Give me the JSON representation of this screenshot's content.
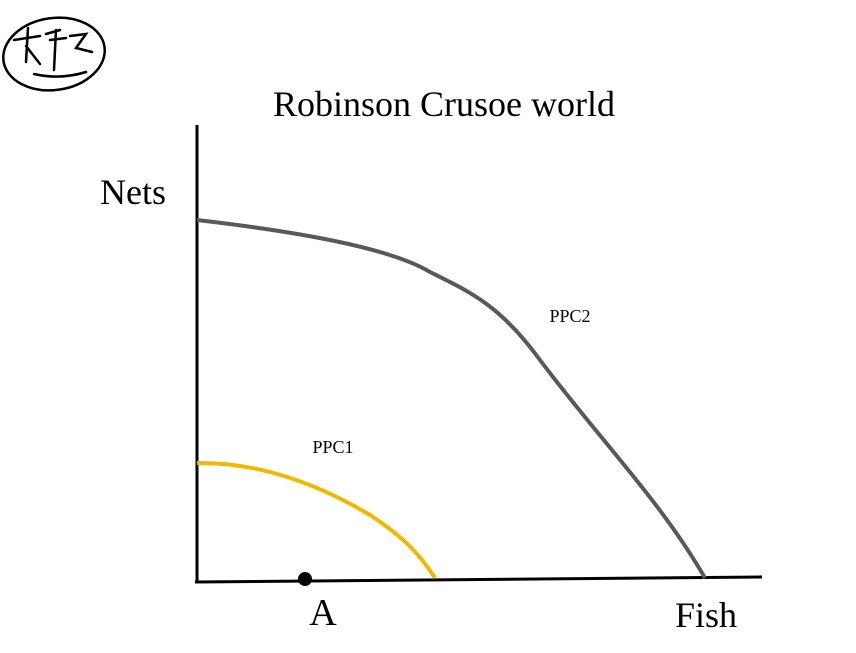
{
  "title": "Robinson Crusoe world",
  "y_axis_label": "Nets",
  "x_axis_label": "Fish",
  "curves": [
    {
      "label": "PPC1"
    },
    {
      "label": "PPC2"
    }
  ],
  "point": {
    "label": "A"
  }
}
